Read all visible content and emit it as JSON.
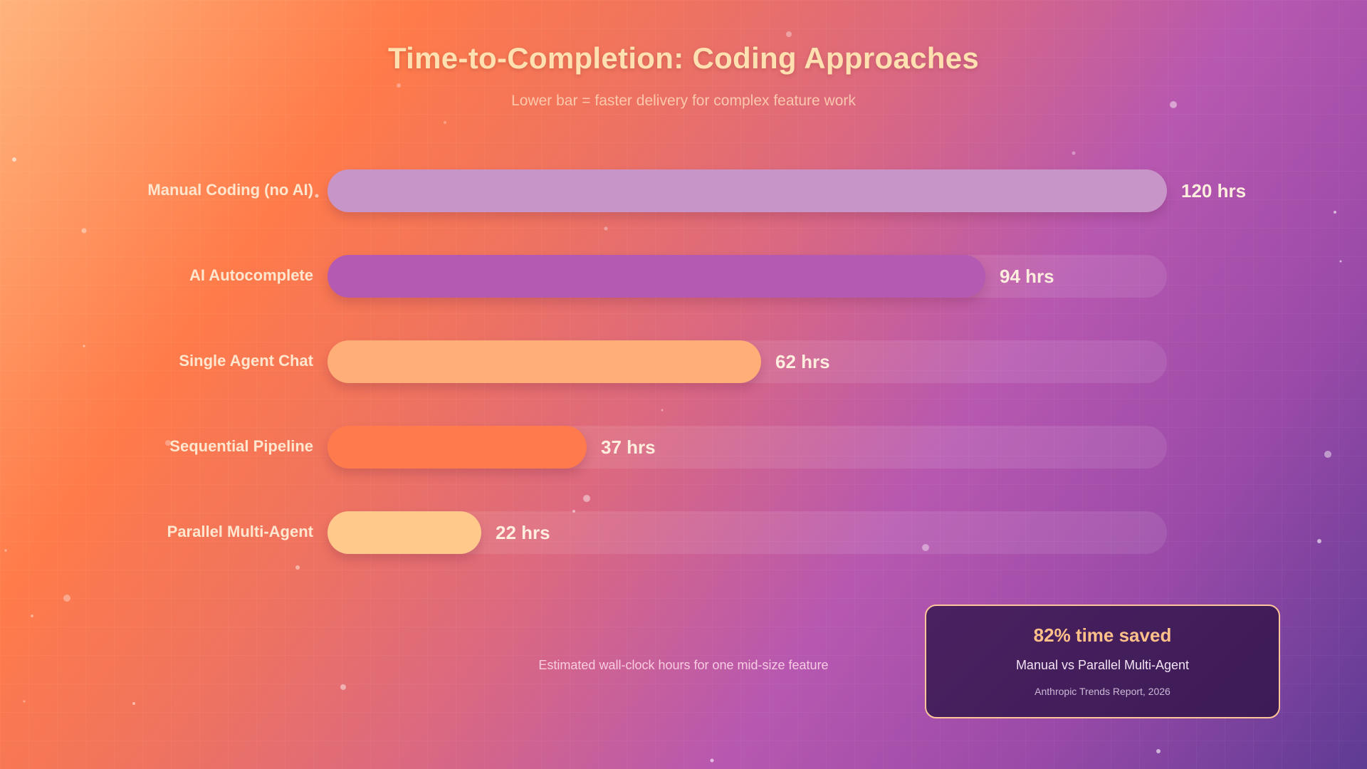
{
  "chart_data": {
    "type": "bar",
    "orientation": "horizontal",
    "title": "Time-to-Completion: Coding Approaches",
    "subtitle": "Lower bar = faster delivery for complex feature work",
    "categories": [
      "Manual Coding (no AI)",
      "AI Autocomplete",
      "Single Agent Chat",
      "Sequential Pipeline",
      "Parallel Multi-Agent"
    ],
    "values": [
      120,
      94,
      62,
      37,
      22
    ],
    "value_labels": [
      "120 hrs",
      "94 hrs",
      "62 hrs",
      "37 hrs",
      "22 hrs"
    ],
    "xlim": [
      0,
      120
    ],
    "grid": false,
    "legend": "none",
    "footnote": "Estimated wall-clock hours for one mid-size feature"
  },
  "colors": {
    "bars": [
      "#c895c8",
      "#b55ab2",
      "#ffae78",
      "#ff7a4c",
      "#ffc98c"
    ]
  },
  "callout": {
    "headline": "82% time saved",
    "subline": "Manual vs Parallel Multi-Agent",
    "source": "Anthropic Trends Report, 2026"
  }
}
